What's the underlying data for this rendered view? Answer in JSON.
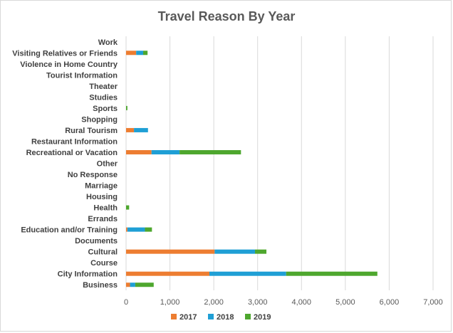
{
  "chart_data": {
    "type": "bar",
    "orientation": "horizontal",
    "stacked": true,
    "title": "Travel Reason By Year",
    "xlabel": "",
    "ylabel": "",
    "xlim": [
      0,
      7000
    ],
    "x_ticks": [
      "0",
      "1,000",
      "2,000",
      "3,000",
      "4,000",
      "5,000",
      "6,000",
      "7,000"
    ],
    "x_tick_values": [
      0,
      1000,
      2000,
      3000,
      4000,
      5000,
      6000,
      7000
    ],
    "grid": true,
    "legend_position": "bottom",
    "categories": [
      "Work",
      "Visiting Relatives or Friends",
      "Violence in Home Country",
      "Tourist Information",
      "Theater",
      "Studies",
      "Sports",
      "Shopping",
      "Rural Tourism",
      "Restaurant Information",
      "Recreational or Vacation",
      "Other",
      "No Response",
      "Marriage",
      "Housing",
      "Health",
      "Errands",
      "Education and/or Training",
      "Documents",
      "Cultural",
      "Course",
      "City Information",
      "Business"
    ],
    "series": [
      {
        "name": "2017",
        "color": "#ED7D31",
        "values": [
          0,
          230,
          0,
          0,
          0,
          0,
          0,
          0,
          180,
          0,
          580,
          0,
          0,
          0,
          0,
          0,
          0,
          30,
          0,
          2020,
          0,
          1900,
          90
        ]
      },
      {
        "name": "2018",
        "color": "#1F9FD5",
        "values": [
          0,
          160,
          0,
          0,
          0,
          0,
          0,
          0,
          320,
          0,
          640,
          0,
          0,
          0,
          0,
          0,
          0,
          400,
          0,
          920,
          0,
          1750,
          120
        ]
      },
      {
        "name": "2019",
        "color": "#4EA72E",
        "values": [
          0,
          100,
          0,
          0,
          0,
          0,
          30,
          0,
          0,
          0,
          1400,
          0,
          0,
          0,
          0,
          70,
          0,
          160,
          0,
          260,
          0,
          2080,
          420
        ]
      }
    ]
  }
}
